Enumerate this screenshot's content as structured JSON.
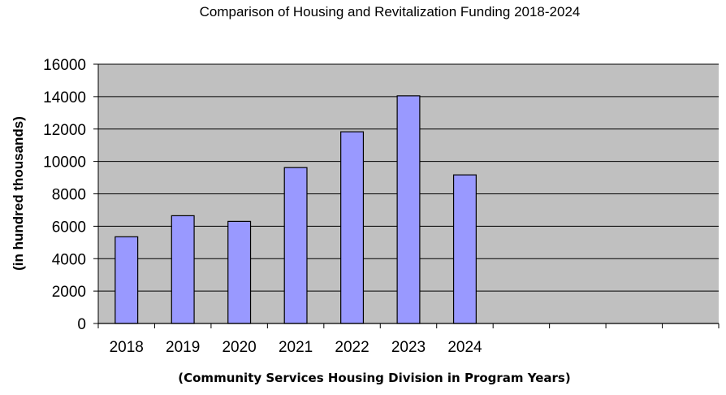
{
  "chart_data": {
    "type": "bar",
    "title": "Comparison of Housing and Revitalization Funding 2018-2024",
    "xlabel": "(Community Services Housing Division in Program Years)",
    "ylabel": "(in hundred thousands)",
    "categories": [
      "2018",
      "2019",
      "2020",
      "2021",
      "2022",
      "2023",
      "2024"
    ],
    "values": [
      5350,
      6650,
      6300,
      9620,
      11830,
      14050,
      9170
    ],
    "ylim": [
      0,
      16000
    ],
    "yticks": [
      "0",
      "2000",
      "4000",
      "6000",
      "8000",
      "10000",
      "12000",
      "14000",
      "16000"
    ],
    "empty_category_slots": 4,
    "grid": true,
    "colors": {
      "bar": "#9999ff",
      "plot_bg": "#c0c0c0",
      "grid": "#000000"
    }
  }
}
